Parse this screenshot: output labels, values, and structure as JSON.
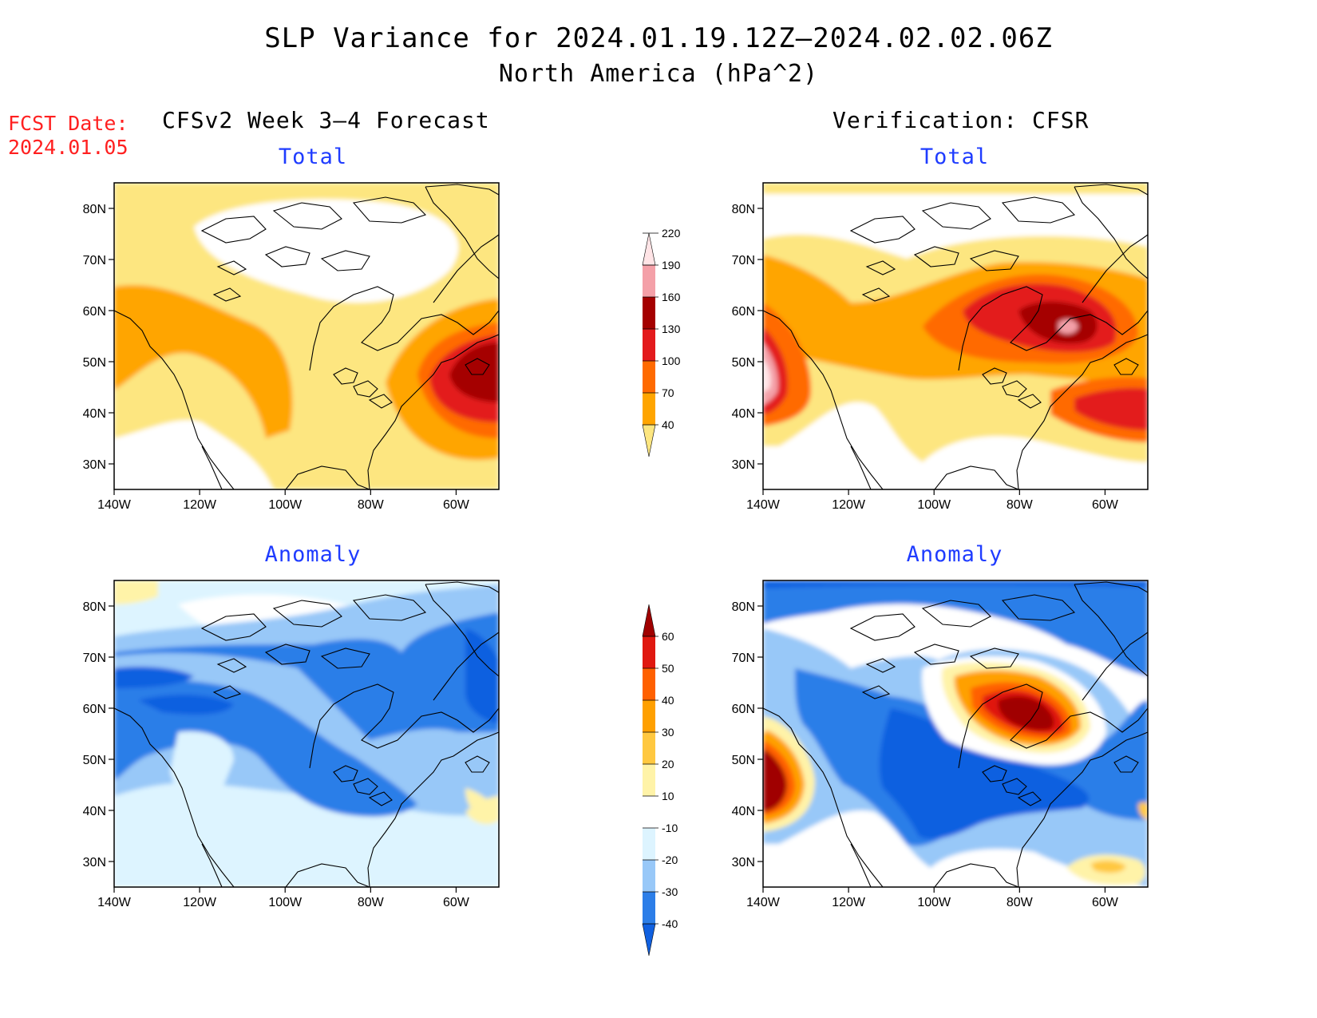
{
  "title": "SLP Variance for 2024.01.19.12Z—2024.02.02.06Z",
  "subtitle": "North America (hPa^2)",
  "fcst_date_label": "FCST Date:",
  "fcst_date_value": "2024.01.05",
  "left_column_title": "CFSv2 Week 3—4 Forecast",
  "right_column_title": "Verification: CFSR",
  "panel_titles": {
    "top_left": "Total",
    "top_right": "Total",
    "bottom_left": "Anomaly",
    "bottom_right": "Anomaly"
  },
  "lat_labels": [
    "80N",
    "70N",
    "60N",
    "50N",
    "40N",
    "30N"
  ],
  "lon_labels": [
    "140W",
    "120W",
    "100W",
    "80W",
    "60W"
  ],
  "total_colorbar": {
    "levels": [
      "40",
      "70",
      "100",
      "130",
      "160",
      "190",
      "220"
    ],
    "colors": [
      "#fde680",
      "#ffa500",
      "#ff6a00",
      "#e31a1c",
      "#a50000",
      "#f4a0a8",
      "#ffe4e6"
    ]
  },
  "anomaly_colorbar": {
    "levels": [
      "-40",
      "-30",
      "-20",
      "-10",
      "10",
      "20",
      "30",
      "40",
      "50",
      "60"
    ],
    "colors": [
      "#1060e0",
      "#2c7ee8",
      "#98c8f8",
      "#ddf4ff",
      "#ffffff",
      "#fff3a8",
      "#ffc840",
      "#ffa000",
      "#ff6000",
      "#e01810",
      "#a00000"
    ]
  },
  "map_extent": {
    "lon": [
      -140,
      -50
    ],
    "lat": [
      25,
      85
    ]
  }
}
